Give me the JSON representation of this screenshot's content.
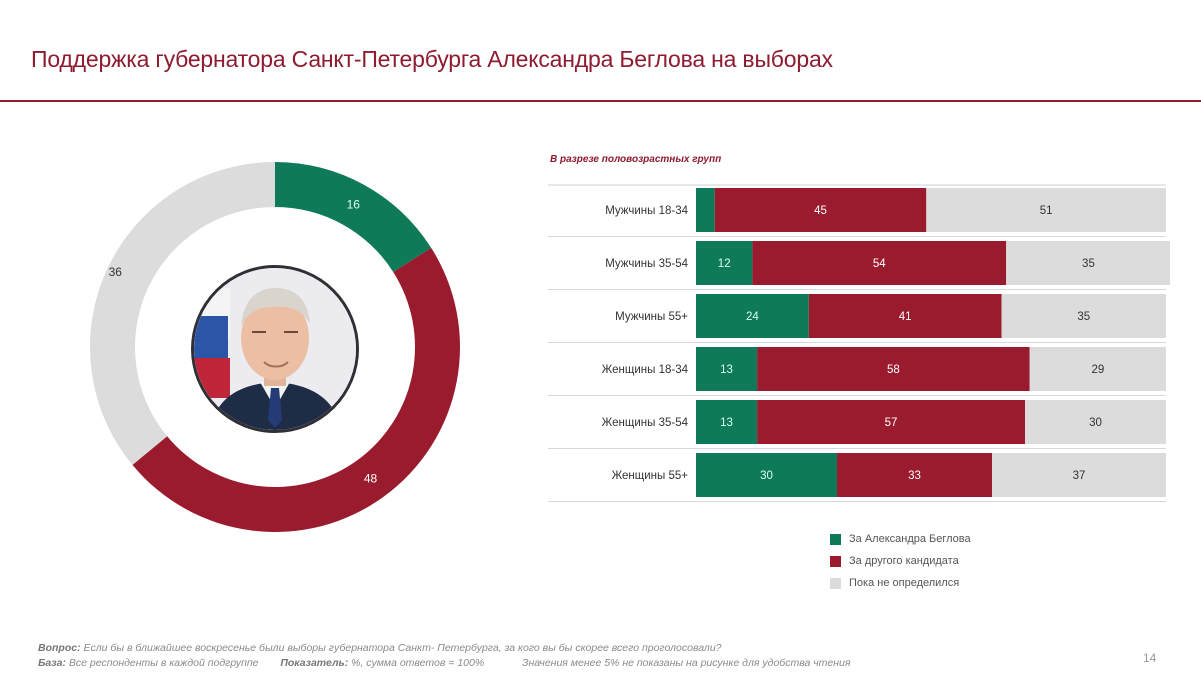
{
  "title": "Поддержка губернатора Санкт-Петербурга Александра Беглова на выборах",
  "colors": {
    "support": "#0e7a5a",
    "other": "#9b1b2e",
    "undecided": "#dcdcdc",
    "title": "#8e1b2f"
  },
  "photo": {
    "icon": "portrait-icon"
  },
  "chart_data": [
    {
      "type": "pie",
      "variant": "donut",
      "labels": [
        "За Александра Беглова",
        "За другого кандидата",
        "Пока не определился"
      ],
      "values": [
        16,
        48,
        36
      ],
      "value_labels": [
        "16",
        "48",
        "36"
      ]
    },
    {
      "type": "bar",
      "orientation": "horizontal",
      "stacked": true,
      "title": "В разрезе половозрастных групп",
      "categories": [
        "Мужчины 18-34",
        "Мужчины 35-54",
        "Мужчины 55+",
        "Женщины 18-34",
        "Женщины 35-54",
        "Женщины 55+"
      ],
      "series": [
        {
          "name": "За Александра Беглова",
          "values": [
            4,
            12,
            24,
            13,
            13,
            30
          ],
          "labels": [
            "",
            "12",
            "24",
            "13",
            "13",
            "30"
          ]
        },
        {
          "name": "За другого кандидата",
          "values": [
            45,
            54,
            41,
            58,
            57,
            33
          ],
          "labels": [
            "45",
            "54",
            "41",
            "58",
            "57",
            "33"
          ]
        },
        {
          "name": "Пока не определился",
          "values": [
            51,
            35,
            35,
            29,
            30,
            37
          ],
          "labels": [
            "51",
            "35",
            "35",
            "29",
            "30",
            "37"
          ]
        }
      ],
      "xlim": [
        0,
        100
      ],
      "legend": "bottom"
    }
  ],
  "footnote": {
    "question_label": "Вопрос:",
    "question_text": "Если бы в ближайшее воскресенье были выборы губернатора Санкт- Петербурга, за кого вы бы скорее всего проголосовали?",
    "base_label": "База:",
    "base_text": "Все респонденты в каждой подгруппе",
    "indicator_label": "Показатель:",
    "indicator_text": "%, сумма ответов = 100%",
    "note": "Значения менее 5% не показаны на рисунке для удобства чтения"
  },
  "page_number": "14"
}
